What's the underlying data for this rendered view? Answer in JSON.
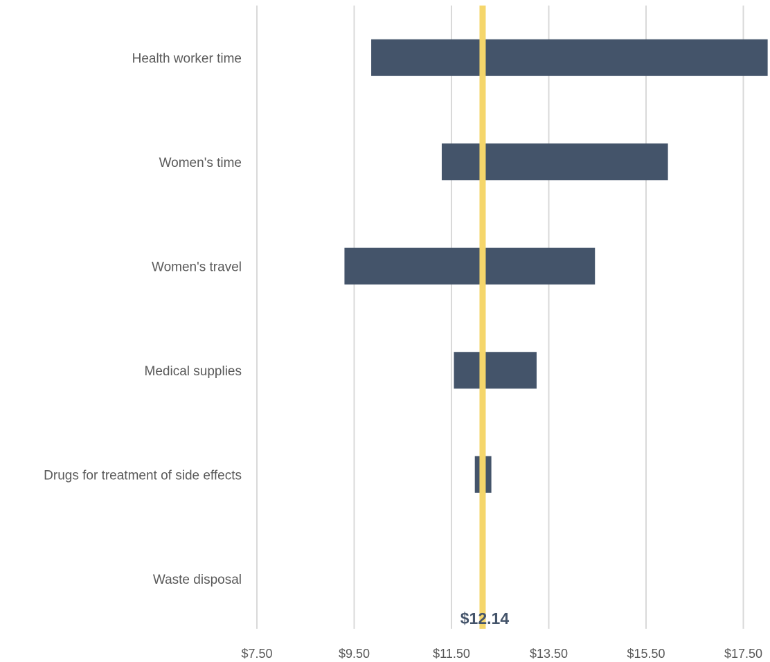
{
  "chart_data": {
    "type": "bar",
    "orientation": "horizontal",
    "subtype": "tornado",
    "categories": [
      "Health worker time",
      "Women's time ",
      "Women's travel ",
      "Medical supplies",
      "Drugs for treatment of side effects",
      "Waste disposal"
    ],
    "ranges": [
      {
        "low": 9.85,
        "high": 18.0
      },
      {
        "low": 11.3,
        "high": 15.95
      },
      {
        "low": 9.3,
        "high": 14.45
      },
      {
        "low": 11.55,
        "high": 13.25
      },
      {
        "low": 11.98,
        "high": 12.32
      },
      {
        "low": 12.14,
        "high": 12.14
      }
    ],
    "baseline": 12.14,
    "baseline_label": "$12.14",
    "xlim": [
      7.5,
      18.0
    ],
    "xticks": [
      7.5,
      9.5,
      11.5,
      13.5,
      15.5,
      17.5
    ],
    "xtick_labels": [
      "$7.50",
      "$9.50",
      "$11.50",
      "$13.50",
      "$15.50",
      "$17.50"
    ],
    "grid": true,
    "colors": {
      "bar": "#44546a",
      "baseline": "#f5d66b",
      "grid": "#d9d9d9",
      "text": "#595959"
    }
  }
}
